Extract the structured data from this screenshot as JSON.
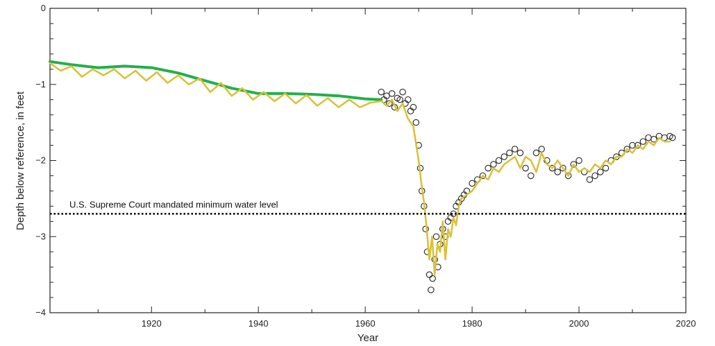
{
  "chart_data": {
    "type": "line",
    "xlabel": "Year",
    "ylabel": "Depth below reference, in feet",
    "xlim": [
      1901,
      2020
    ],
    "ylim": [
      -4,
      0
    ],
    "x_ticks": [
      1920,
      1940,
      1960,
      1980,
      2000,
      2020
    ],
    "y_ticks": [
      0,
      -1,
      -2,
      -3,
      -4
    ],
    "grid": false,
    "colors": {
      "green": "#22b04a",
      "yellow": "#d8c23a",
      "observed": "#222222",
      "reference": "#000000"
    },
    "reference_line": {
      "y": -2.7,
      "label": "U.S. Supreme Court mandated minimum water level"
    },
    "series": [
      {
        "style": "green-line",
        "x": [
          1901,
          1905,
          1910,
          1915,
          1920,
          1925,
          1930,
          1935,
          1940,
          1945,
          1950,
          1955,
          1960,
          1963
        ],
        "y": [
          -0.7,
          -0.74,
          -0.78,
          -0.76,
          -0.78,
          -0.85,
          -0.95,
          -1.05,
          -1.12,
          -1.12,
          -1.13,
          -1.15,
          -1.19,
          -1.2
        ]
      },
      {
        "style": "yellow-line",
        "x": [
          1901,
          1903,
          1905,
          1907,
          1909,
          1911,
          1913,
          1915,
          1917,
          1919,
          1921,
          1923,
          1925,
          1927,
          1929,
          1931,
          1933,
          1935,
          1937,
          1939,
          1941,
          1943,
          1945,
          1947,
          1949,
          1951,
          1953,
          1955,
          1957,
          1959,
          1961,
          1963,
          1964,
          1965,
          1966,
          1967,
          1968,
          1969,
          1970,
          1970.5,
          1971,
          1971.5,
          1972,
          1972.5,
          1973,
          1973.5,
          1974,
          1974.5,
          1975,
          1975.5,
          1976,
          1976.5,
          1977,
          1977.5,
          1978,
          1979,
          1980,
          1981,
          1982,
          1983,
          1984,
          1985,
          1986,
          1987,
          1988,
          1989,
          1990,
          1991,
          1992,
          1993,
          1994,
          1995,
          1996,
          1997,
          1998,
          1999,
          2000,
          2001,
          2002,
          2003,
          2004,
          2005,
          2006,
          2007,
          2008,
          2009,
          2010,
          2011,
          2012,
          2013,
          2014,
          2015,
          2016,
          2017
        ],
        "y": [
          -0.72,
          -0.82,
          -0.76,
          -0.9,
          -0.8,
          -0.88,
          -0.8,
          -0.92,
          -0.82,
          -0.95,
          -0.84,
          -0.98,
          -0.88,
          -1.0,
          -0.92,
          -1.1,
          -0.98,
          -1.15,
          -1.05,
          -1.2,
          -1.1,
          -1.22,
          -1.12,
          -1.25,
          -1.14,
          -1.28,
          -1.18,
          -1.3,
          -1.2,
          -1.3,
          -1.24,
          -1.22,
          -1.28,
          -1.2,
          -1.35,
          -1.25,
          -1.45,
          -1.55,
          -2.0,
          -2.3,
          -2.55,
          -2.9,
          -3.3,
          -3.0,
          -3.5,
          -3.1,
          -3.2,
          -2.8,
          -3.3,
          -2.9,
          -3.0,
          -2.75,
          -2.85,
          -2.6,
          -2.5,
          -2.45,
          -2.4,
          -2.3,
          -2.2,
          -2.25,
          -2.1,
          -2.15,
          -2.05,
          -2.0,
          -1.95,
          -2.1,
          -1.95,
          -2.0,
          -2.15,
          -1.9,
          -2.05,
          -2.1,
          -2.0,
          -2.1,
          -2.2,
          -2.05,
          -2.15,
          -2.1,
          -2.15,
          -2.05,
          -2.1,
          -2.0,
          -2.05,
          -1.95,
          -1.95,
          -1.85,
          -1.9,
          -1.8,
          -1.85,
          -1.75,
          -1.8,
          -1.7,
          -1.75,
          -1.75
        ]
      },
      {
        "style": "observed-points",
        "x": [
          1963,
          1963.5,
          1964,
          1964.5,
          1965,
          1965.5,
          1966,
          1966.5,
          1967,
          1967.5,
          1968,
          1968.5,
          1969,
          1969.5,
          1970,
          1970.3,
          1970.6,
          1971,
          1971.3,
          1971.6,
          1972,
          1972.3,
          1972.6,
          1973,
          1973.3,
          1973.6,
          1974,
          1974.5,
          1975,
          1975.5,
          1976,
          1976.5,
          1977,
          1977.5,
          1978,
          1978.5,
          1979,
          1980,
          1981,
          1982,
          1983,
          1984,
          1985,
          1986,
          1987,
          1988,
          1989,
          1990,
          1991,
          1992,
          1993,
          1994,
          1995,
          1996,
          1997,
          1998,
          1999,
          2000,
          2001,
          2002,
          2003,
          2004,
          2005,
          2006,
          2007,
          2008,
          2009,
          2010,
          2011,
          2012,
          2013,
          2014,
          2015,
          2016,
          2017,
          2017.5
        ],
        "y": [
          -1.1,
          -1.2,
          -1.15,
          -1.25,
          -1.12,
          -1.3,
          -1.18,
          -1.2,
          -1.1,
          -1.25,
          -1.2,
          -1.35,
          -1.3,
          -1.5,
          -1.8,
          -2.1,
          -2.4,
          -2.6,
          -2.9,
          -3.2,
          -3.5,
          -3.7,
          -3.55,
          -3.3,
          -3.0,
          -3.4,
          -3.1,
          -2.9,
          -3.0,
          -2.8,
          -2.75,
          -2.7,
          -2.6,
          -2.55,
          -2.5,
          -2.45,
          -2.4,
          -2.3,
          -2.25,
          -2.2,
          -2.1,
          -2.05,
          -2.0,
          -1.95,
          -1.9,
          -1.85,
          -1.9,
          -2.1,
          -2.2,
          -1.9,
          -1.85,
          -2.0,
          -2.1,
          -2.15,
          -2.1,
          -2.2,
          -2.05,
          -2.0,
          -2.15,
          -2.25,
          -2.2,
          -2.15,
          -2.1,
          -2.0,
          -1.95,
          -1.9,
          -1.85,
          -1.8,
          -1.8,
          -1.75,
          -1.7,
          -1.72,
          -1.68,
          -1.7,
          -1.68,
          -1.7
        ]
      }
    ]
  }
}
